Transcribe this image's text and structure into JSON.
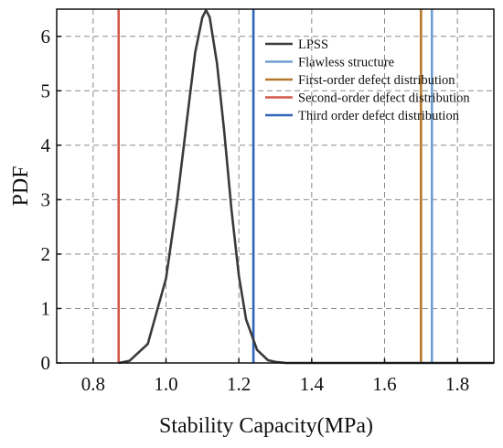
{
  "chart_data": {
    "type": "line",
    "xlabel": "Stability Capacity(MPa)",
    "ylabel": "PDF",
    "xlim": [
      0.7,
      1.9
    ],
    "ylim": [
      0,
      6.5
    ],
    "xticks": [
      0.8,
      1.0,
      1.2,
      1.4,
      1.6,
      1.8
    ],
    "xtick_labels": [
      "0.8",
      "1.0",
      "1.2",
      "1.4",
      "1.6",
      "1.8"
    ],
    "yticks": [
      0,
      1,
      2,
      3,
      4,
      5,
      6
    ],
    "ytick_labels": [
      "0",
      "1",
      "2",
      "3",
      "4",
      "5",
      "6"
    ],
    "grid": "dashed",
    "legend_position": "top-right",
    "series": [
      {
        "name": "LPSS",
        "kind": "curve",
        "color": "#3a3a3a",
        "x": [
          0.87,
          0.9,
          0.95,
          1.0,
          1.03,
          1.06,
          1.08,
          1.1,
          1.11,
          1.12,
          1.14,
          1.16,
          1.18,
          1.2,
          1.22,
          1.25,
          1.28,
          1.3,
          1.33,
          1.9
        ],
        "y": [
          0.0,
          0.04,
          0.35,
          1.55,
          2.95,
          4.6,
          5.7,
          6.35,
          6.48,
          6.35,
          5.5,
          4.25,
          2.8,
          1.6,
          0.8,
          0.24,
          0.05,
          0.02,
          0.0,
          0.0
        ]
      },
      {
        "name": "Flawless structure",
        "kind": "vline",
        "x": 1.73,
        "color": "#6f9fd1"
      },
      {
        "name": "First-order defect distribution",
        "kind": "vline",
        "x": 1.7,
        "color": "#b5782a"
      },
      {
        "name": "Second-order defect distribution",
        "kind": "vline",
        "x": 0.87,
        "color": "#d2584a"
      },
      {
        "name": "Third order defect distribution",
        "kind": "vline",
        "x": 1.24,
        "color": "#2f63b8"
      }
    ]
  }
}
